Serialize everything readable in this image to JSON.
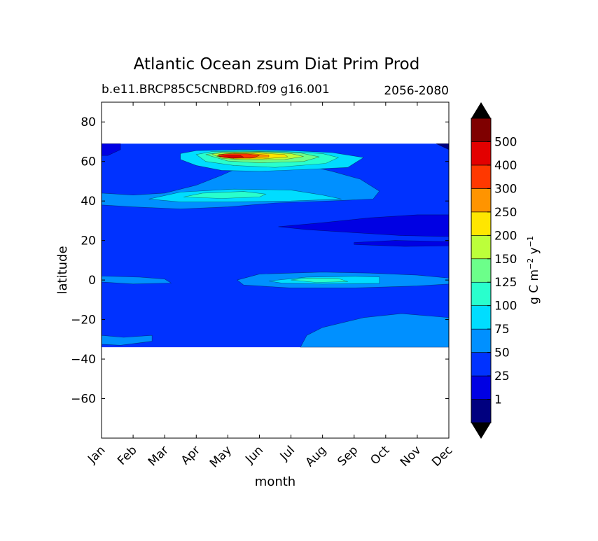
{
  "chart_data": {
    "type": "heatmap",
    "subtype": "filled-contour",
    "title": "Atlantic Ocean zsum Diat Prim Prod",
    "subtitle_left": "b.e11.BRCP85C5CNBDRD.f09 g16.001",
    "subtitle_right": "2056-2080",
    "xlabel": "month",
    "ylabel": "latitude",
    "x_ticks": [
      "Jan",
      "Feb",
      "Mar",
      "Apr",
      "May",
      "Jun",
      "Jul",
      "Aug",
      "Sep",
      "Oct",
      "Nov",
      "Dec"
    ],
    "y_ticks": [
      80,
      60,
      40,
      20,
      0,
      -20,
      -40,
      -60
    ],
    "y_tick_labels": [
      "80",
      "60",
      "40",
      "20",
      "0",
      "−20",
      "−40",
      "−60"
    ],
    "ylim": [
      -80,
      90
    ],
    "data_lat_range": [
      -34,
      69
    ],
    "colorbar": {
      "label_text": "g C m",
      "label_sup1": "−2",
      "label_mid": " y",
      "label_sup2": "−1",
      "extend": "both",
      "under_color": "#000000",
      "over_color": "#000000",
      "levels": [
        "1",
        "25",
        "50",
        "75",
        "100",
        "125",
        "150",
        "200",
        "250",
        "300",
        "400",
        "500"
      ],
      "colors": [
        "#00007f",
        "#0000e3",
        "#0032ff",
        "#0090ff",
        "#00ddff",
        "#29ffcd",
        "#6cff8a",
        "#bcff3a",
        "#ffe600",
        "#ff9400",
        "#ff3800",
        "#e30000",
        "#7f0000"
      ]
    },
    "background_level": 2,
    "regions": [
      {
        "level": 3,
        "label": "mid-latitude band",
        "points": [
          [
            0,
            44
          ],
          [
            1,
            43
          ],
          [
            2,
            44
          ],
          [
            3,
            48
          ],
          [
            3.8,
            53
          ],
          [
            4.5,
            58
          ],
          [
            5.5,
            59
          ],
          [
            6.5,
            58
          ],
          [
            7.3,
            55
          ],
          [
            8.2,
            51
          ],
          [
            8.8,
            45
          ],
          [
            8.6,
            41
          ],
          [
            7.2,
            40
          ],
          [
            5.5,
            39
          ],
          [
            4,
            37
          ],
          [
            2.5,
            36
          ],
          [
            1,
            37
          ],
          [
            0,
            38
          ]
        ]
      },
      {
        "level": 3,
        "label": "equatorial band",
        "points": [
          [
            4.3,
            0
          ],
          [
            5,
            3
          ],
          [
            7,
            4
          ],
          [
            8.5,
            3.5
          ],
          [
            10,
            2.5
          ],
          [
            11,
            1
          ],
          [
            11,
            -2
          ],
          [
            10,
            -3
          ],
          [
            8,
            -4
          ],
          [
            6,
            -4
          ],
          [
            4.5,
            -2.5
          ]
        ]
      },
      {
        "level": 3,
        "label": "southern band",
        "points": [
          [
            6.3,
            -34
          ],
          [
            6.5,
            -28
          ],
          [
            7,
            -24
          ],
          [
            8.3,
            -19
          ],
          [
            9.5,
            -17
          ],
          [
            11,
            -19
          ],
          [
            11,
            -34
          ]
        ]
      },
      {
        "level": 3,
        "label": "southern band west",
        "points": [
          [
            0,
            -28
          ],
          [
            0.7,
            -29
          ],
          [
            1.6,
            -28
          ],
          [
            1.6,
            -31
          ],
          [
            0.6,
            -33
          ],
          [
            0,
            -32.5
          ]
        ]
      },
      {
        "level": 3,
        "label": "equatorial band west",
        "points": [
          [
            0,
            2
          ],
          [
            1.2,
            1.5
          ],
          [
            2,
            0.5
          ],
          [
            2.2,
            -1.5
          ],
          [
            1,
            -2
          ],
          [
            0,
            -1
          ]
        ]
      },
      {
        "level": 1,
        "label": "northern subtropical band",
        "points": [
          [
            5.6,
            27
          ],
          [
            7,
            29
          ],
          [
            8.5,
            31.5
          ],
          [
            10,
            33
          ],
          [
            11,
            33
          ],
          [
            11,
            22
          ],
          [
            9.5,
            22.5
          ],
          [
            8,
            24
          ],
          [
            6.5,
            25.5
          ]
        ]
      },
      {
        "level": 1,
        "label": "northeast strip",
        "points": [
          [
            8,
            19
          ],
          [
            9.3,
            20
          ],
          [
            11,
            19.5
          ],
          [
            11,
            17.3
          ],
          [
            9.6,
            17
          ],
          [
            8,
            18
          ]
        ]
      },
      {
        "level": 1,
        "label": "northwest corner",
        "points": [
          [
            0,
            69
          ],
          [
            0.6,
            69
          ],
          [
            0.6,
            66
          ],
          [
            0.2,
            63
          ],
          [
            0,
            63
          ]
        ]
      },
      {
        "level": 0,
        "label": "northeast corner",
        "points": [
          [
            10.6,
            69
          ],
          [
            11,
            69
          ],
          [
            11,
            66
          ]
        ]
      },
      {
        "level": 4,
        "label": "upper contour",
        "points": [
          [
            2.5,
            64
          ],
          [
            3,
            65.5
          ],
          [
            4.5,
            66
          ],
          [
            6,
            65.5
          ],
          [
            7.3,
            64.5
          ],
          [
            8.3,
            62
          ],
          [
            7.8,
            57
          ],
          [
            6.5,
            56
          ],
          [
            5,
            55
          ],
          [
            3.8,
            55.5
          ],
          [
            3,
            58
          ],
          [
            2.5,
            61
          ]
        ]
      },
      {
        "level": 4,
        "label": "middle contour",
        "points": [
          [
            1.5,
            41
          ],
          [
            2.5,
            44.5
          ],
          [
            4.2,
            46
          ],
          [
            6,
            45.5
          ],
          [
            7,
            43
          ],
          [
            7.6,
            41
          ],
          [
            6,
            40
          ],
          [
            4,
            39.5
          ],
          [
            2.5,
            39.5
          ]
        ]
      },
      {
        "level": 4,
        "label": "lower contour",
        "points": [
          [
            5.3,
            -0.5
          ],
          [
            6.5,
            1.5
          ],
          [
            8,
            1.9
          ],
          [
            8.8,
            1.6
          ],
          [
            8.8,
            -1.7
          ],
          [
            7,
            -2
          ],
          [
            5.7,
            -1.5
          ]
        ]
      },
      {
        "level": 5,
        "label": "upper contour",
        "points": [
          [
            3,
            63.5
          ],
          [
            3.5,
            65
          ],
          [
            4.5,
            65.3
          ],
          [
            5.8,
            65
          ],
          [
            7,
            64
          ],
          [
            7.5,
            62
          ],
          [
            7.1,
            59
          ],
          [
            5.5,
            57
          ],
          [
            4.2,
            58
          ],
          [
            3.3,
            60
          ]
        ]
      },
      {
        "level": 5,
        "label": "middle contour",
        "points": [
          [
            2.6,
            42
          ],
          [
            3.2,
            44
          ],
          [
            4.5,
            44.8
          ],
          [
            5.2,
            43.5
          ],
          [
            5,
            42
          ],
          [
            3.8,
            41.3
          ]
        ]
      },
      {
        "level": 5,
        "label": "lower contour",
        "points": [
          [
            6,
            0
          ],
          [
            6.5,
            1
          ],
          [
            7.5,
            0.8
          ],
          [
            7.8,
            -0.8
          ],
          [
            6.8,
            -1.2
          ]
        ]
      },
      {
        "level": 6,
        "label": "upper contour",
        "points": [
          [
            3.3,
            63.5
          ],
          [
            3.8,
            64.8
          ],
          [
            5,
            65
          ],
          [
            6.3,
            64.3
          ],
          [
            6.9,
            62.3
          ],
          [
            6.4,
            60
          ],
          [
            5,
            59.3
          ],
          [
            4,
            60.2
          ]
        ]
      },
      {
        "level": 7,
        "label": "upper contour",
        "points": [
          [
            3.5,
            63.8
          ],
          [
            4,
            64.6
          ],
          [
            5,
            64.7
          ],
          [
            6,
            64
          ],
          [
            6.4,
            62.5
          ],
          [
            5.8,
            61
          ],
          [
            4.5,
            60.8
          ],
          [
            3.8,
            61.6
          ]
        ]
      },
      {
        "level": 8,
        "label": "upper contour",
        "points": [
          [
            3.7,
            63.5
          ],
          [
            4.2,
            64.3
          ],
          [
            5,
            64.2
          ],
          [
            5.8,
            63.5
          ],
          [
            5.9,
            62.3
          ],
          [
            5.1,
            61.3
          ],
          [
            4.2,
            61.3
          ]
        ]
      },
      {
        "level": 9,
        "label": "upper contour",
        "points": [
          [
            3.7,
            63.5
          ],
          [
            4.2,
            64
          ],
          [
            4.8,
            63.9
          ],
          [
            5.3,
            63.2
          ],
          [
            5.3,
            62.3
          ],
          [
            4.7,
            61.7
          ],
          [
            4,
            61.9
          ]
        ]
      },
      {
        "level": 10,
        "label": "upper contour",
        "points": [
          [
            3.65,
            62.8
          ],
          [
            3.9,
            63.8
          ],
          [
            4.6,
            63.9
          ],
          [
            5,
            63
          ],
          [
            4.8,
            61.8
          ],
          [
            4.1,
            61.6
          ]
        ]
      },
      {
        "level": 11,
        "label": "upper contour",
        "points": [
          [
            3.7,
            62.5
          ],
          [
            4,
            63.1
          ],
          [
            4.4,
            63
          ],
          [
            4.5,
            62.2
          ],
          [
            4.2,
            61.8
          ],
          [
            3.9,
            61.9
          ]
        ]
      }
    ]
  }
}
